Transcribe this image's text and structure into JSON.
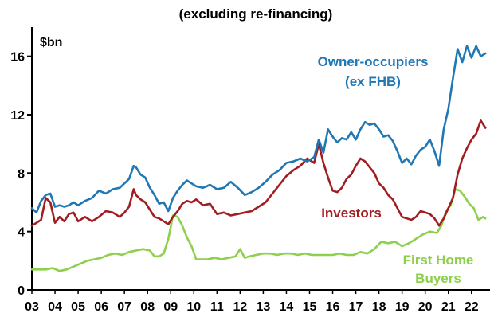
{
  "chart_data": {
    "type": "line",
    "title": "(excluding re-financing)",
    "ylabel": "$bn",
    "xlabel": "",
    "ylim": [
      0,
      18
    ],
    "xlim": [
      2003,
      2022.8
    ],
    "y_ticks": [
      0,
      4,
      8,
      12,
      16
    ],
    "x_ticks": [
      "03",
      "04",
      "05",
      "06",
      "07",
      "08",
      "09",
      "10",
      "11",
      "12",
      "13",
      "14",
      "15",
      "16",
      "17",
      "18",
      "19",
      "20",
      "21",
      "22"
    ],
    "grid": false,
    "legend": "inline labels",
    "series": [
      {
        "name": "Owner-occupiers (ex FHB)",
        "color": "#1f77b4",
        "x": [
          2003.0,
          2003.2,
          2003.4,
          2003.6,
          2003.8,
          2004.0,
          2004.2,
          2004.4,
          2004.6,
          2004.8,
          2005.0,
          2005.3,
          2005.6,
          2005.9,
          2006.2,
          2006.5,
          2006.8,
          2007.0,
          2007.2,
          2007.4,
          2007.5,
          2007.7,
          2007.9,
          2008.1,
          2008.3,
          2008.5,
          2008.7,
          2008.9,
          2009.1,
          2009.3,
          2009.5,
          2009.7,
          2009.9,
          2010.1,
          2010.4,
          2010.7,
          2011.0,
          2011.3,
          2011.6,
          2011.9,
          2012.2,
          2012.5,
          2012.8,
          2013.1,
          2013.4,
          2013.7,
          2014.0,
          2014.3,
          2014.6,
          2014.9,
          2015.2,
          2015.4,
          2015.6,
          2015.8,
          2016.0,
          2016.2,
          2016.4,
          2016.6,
          2016.8,
          2017.0,
          2017.2,
          2017.4,
          2017.6,
          2017.8,
          2018.0,
          2018.2,
          2018.4,
          2018.6,
          2018.8,
          2019.0,
          2019.2,
          2019.4,
          2019.6,
          2019.8,
          2020.0,
          2020.2,
          2020.4,
          2020.6,
          2020.8,
          2021.0,
          2021.2,
          2021.4,
          2021.6,
          2021.8,
          2022.0,
          2022.2,
          2022.4,
          2022.6
        ],
        "values": [
          5.6,
          5.3,
          6.1,
          6.5,
          6.6,
          5.7,
          5.8,
          5.7,
          5.8,
          6.0,
          5.8,
          6.1,
          6.3,
          6.8,
          6.6,
          6.9,
          7.0,
          7.3,
          7.6,
          8.5,
          8.4,
          7.9,
          7.7,
          7.0,
          6.5,
          5.9,
          6.0,
          5.4,
          6.3,
          6.8,
          7.2,
          7.5,
          7.3,
          7.1,
          7.0,
          7.2,
          6.9,
          7.0,
          7.4,
          7.0,
          6.5,
          6.7,
          7.0,
          7.4,
          7.9,
          8.2,
          8.7,
          8.8,
          9.0,
          8.8,
          9.1,
          10.3,
          9.4,
          11.0,
          10.5,
          10.1,
          10.4,
          10.3,
          10.8,
          10.3,
          11.0,
          11.5,
          11.3,
          11.4,
          11.0,
          10.5,
          10.6,
          10.2,
          9.5,
          8.7,
          9.0,
          8.6,
          9.2,
          9.6,
          9.8,
          10.3,
          9.5,
          8.5,
          11.0,
          12.4,
          14.5,
          16.5,
          15.6,
          16.7,
          15.9,
          16.7,
          16.0,
          16.2
        ]
      },
      {
        "name": "Investors",
        "color": "#a11d21",
        "x": [
          2003.0,
          2003.2,
          2003.4,
          2003.6,
          2003.8,
          2004.0,
          2004.2,
          2004.4,
          2004.6,
          2004.8,
          2005.0,
          2005.3,
          2005.6,
          2005.9,
          2006.2,
          2006.5,
          2006.8,
          2007.0,
          2007.2,
          2007.4,
          2007.5,
          2007.7,
          2007.9,
          2008.1,
          2008.3,
          2008.5,
          2008.7,
          2008.9,
          2009.1,
          2009.3,
          2009.5,
          2009.7,
          2009.9,
          2010.1,
          2010.4,
          2010.7,
          2011.0,
          2011.3,
          2011.6,
          2011.9,
          2012.2,
          2012.5,
          2012.8,
          2013.1,
          2013.4,
          2013.7,
          2014.0,
          2014.3,
          2014.6,
          2014.9,
          2015.2,
          2015.4,
          2015.6,
          2015.8,
          2016.0,
          2016.2,
          2016.4,
          2016.6,
          2016.8,
          2017.0,
          2017.2,
          2017.4,
          2017.6,
          2017.8,
          2018.0,
          2018.2,
          2018.4,
          2018.6,
          2018.8,
          2019.0,
          2019.2,
          2019.4,
          2019.6,
          2019.8,
          2020.0,
          2020.2,
          2020.4,
          2020.6,
          2020.8,
          2021.0,
          2021.2,
          2021.4,
          2021.6,
          2021.8,
          2022.0,
          2022.2,
          2022.4,
          2022.6
        ],
        "values": [
          4.4,
          4.6,
          4.8,
          6.3,
          6.0,
          4.6,
          5.0,
          4.7,
          5.2,
          5.3,
          4.7,
          5.0,
          4.7,
          5.0,
          5.4,
          5.3,
          5.0,
          5.3,
          5.7,
          6.9,
          6.5,
          6.2,
          6.0,
          5.5,
          5.0,
          4.9,
          4.7,
          4.5,
          5.0,
          5.4,
          5.9,
          6.1,
          6.0,
          6.2,
          5.8,
          5.9,
          5.2,
          5.3,
          5.1,
          5.2,
          5.3,
          5.4,
          5.7,
          6.0,
          6.6,
          7.2,
          7.8,
          8.2,
          8.5,
          9.0,
          8.7,
          10.0,
          8.7,
          7.7,
          6.8,
          6.7,
          7.0,
          7.6,
          7.9,
          8.5,
          9.0,
          8.8,
          8.4,
          8.0,
          7.3,
          7.0,
          6.5,
          6.2,
          5.6,
          5.0,
          4.9,
          4.8,
          5.0,
          5.4,
          5.3,
          5.2,
          4.9,
          4.4,
          4.9,
          5.6,
          6.3,
          7.9,
          9.0,
          9.7,
          10.3,
          10.7,
          11.6,
          11.1
        ]
      },
      {
        "name": "First Home Buyers",
        "color": "#8cd04b",
        "x": [
          2003.0,
          2003.3,
          2003.6,
          2003.9,
          2004.2,
          2004.5,
          2004.8,
          2005.1,
          2005.4,
          2005.7,
          2006.0,
          2006.3,
          2006.6,
          2006.9,
          2007.2,
          2007.5,
          2007.8,
          2008.1,
          2008.3,
          2008.5,
          2008.7,
          2008.9,
          2009.1,
          2009.3,
          2009.5,
          2009.7,
          2009.9,
          2010.1,
          2010.3,
          2010.6,
          2010.9,
          2011.2,
          2011.5,
          2011.8,
          2012.0,
          2012.2,
          2012.4,
          2012.7,
          2013.0,
          2013.3,
          2013.6,
          2013.9,
          2014.2,
          2014.5,
          2014.8,
          2015.1,
          2015.4,
          2015.7,
          2016.0,
          2016.3,
          2016.6,
          2016.9,
          2017.2,
          2017.5,
          2017.8,
          2018.1,
          2018.4,
          2018.7,
          2019.0,
          2019.3,
          2019.6,
          2019.9,
          2020.2,
          2020.5,
          2020.7,
          2020.9,
          2021.1,
          2021.3,
          2021.5,
          2021.7,
          2021.9,
          2022.1,
          2022.3,
          2022.5,
          2022.6
        ],
        "values": [
          1.4,
          1.4,
          1.4,
          1.5,
          1.3,
          1.4,
          1.6,
          1.8,
          2.0,
          2.1,
          2.2,
          2.4,
          2.5,
          2.4,
          2.6,
          2.7,
          2.8,
          2.7,
          2.3,
          2.3,
          2.5,
          3.5,
          5.1,
          5.0,
          4.4,
          3.6,
          3.0,
          2.1,
          2.1,
          2.1,
          2.2,
          2.1,
          2.2,
          2.3,
          2.8,
          2.2,
          2.3,
          2.4,
          2.5,
          2.5,
          2.4,
          2.5,
          2.5,
          2.4,
          2.5,
          2.4,
          2.4,
          2.4,
          2.4,
          2.5,
          2.4,
          2.4,
          2.6,
          2.5,
          2.8,
          3.3,
          3.2,
          3.3,
          3.0,
          3.2,
          3.5,
          3.8,
          4.0,
          3.9,
          4.4,
          5.4,
          5.8,
          6.9,
          6.8,
          6.4,
          5.9,
          5.6,
          4.8,
          5.0,
          4.9
        ]
      }
    ]
  },
  "labels": {
    "unit": "$bn",
    "owner_line1": "Owner-occupiers",
    "owner_line2": "(ex FHB)",
    "investors": "Investors",
    "fhb_line1": "First Home",
    "fhb_line2": "Buyers"
  }
}
